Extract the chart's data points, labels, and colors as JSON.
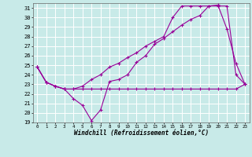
{
  "bg_color": "#c8eae8",
  "grid_color": "#aadddd",
  "line_color": "#990099",
  "xlim": [
    -0.5,
    23.5
  ],
  "ylim": [
    19,
    31.5
  ],
  "yticks": [
    19,
    20,
    21,
    22,
    23,
    24,
    25,
    26,
    27,
    28,
    29,
    30,
    31
  ],
  "xticks": [
    0,
    1,
    2,
    3,
    4,
    5,
    6,
    7,
    8,
    9,
    10,
    11,
    12,
    13,
    14,
    15,
    16,
    17,
    18,
    19,
    20,
    21,
    22,
    23
  ],
  "xlabel": "Windchill (Refroidissement éolien,°C)",
  "line1_x": [
    0,
    1,
    2,
    3,
    4,
    5,
    6,
    7,
    8,
    9,
    10,
    11,
    12,
    13,
    14,
    15,
    16,
    17,
    18,
    19,
    20,
    21,
    22,
    23
  ],
  "line1_y": [
    24.8,
    23.2,
    22.8,
    22.5,
    22.5,
    22.5,
    22.5,
    22.5,
    22.5,
    22.5,
    22.5,
    22.5,
    22.5,
    22.5,
    22.5,
    22.5,
    22.5,
    22.5,
    22.5,
    22.5,
    22.5,
    22.5,
    22.5,
    23.0
  ],
  "line2_x": [
    0,
    1,
    2,
    3,
    4,
    5,
    6,
    7,
    8,
    9,
    10,
    11,
    12,
    13,
    14,
    15,
    16,
    17,
    18,
    19,
    20,
    21,
    22,
    23
  ],
  "line2_y": [
    24.8,
    23.2,
    22.8,
    22.5,
    21.5,
    20.8,
    19.2,
    20.3,
    23.3,
    23.5,
    24.0,
    25.3,
    26.0,
    27.2,
    27.8,
    28.5,
    29.2,
    29.8,
    30.2,
    31.2,
    31.3,
    28.8,
    25.2,
    23.0
  ],
  "line3_x": [
    0,
    1,
    2,
    3,
    4,
    5,
    6,
    7,
    8,
    9,
    10,
    11,
    12,
    13,
    14,
    15,
    16,
    17,
    18,
    19,
    20,
    21,
    22,
    23
  ],
  "line3_y": [
    24.8,
    23.2,
    22.8,
    22.5,
    22.5,
    22.8,
    23.5,
    24.0,
    24.8,
    25.2,
    25.8,
    26.3,
    27.0,
    27.5,
    28.0,
    30.0,
    31.2,
    31.2,
    31.2,
    31.2,
    31.2,
    31.2,
    24.0,
    23.0
  ]
}
